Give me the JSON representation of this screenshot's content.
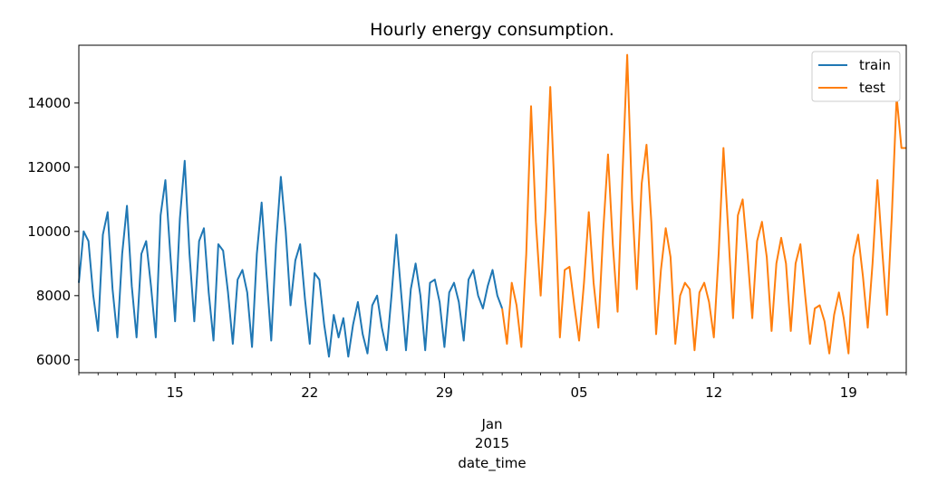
{
  "chart_data": {
    "type": "line",
    "title": "Hourly energy consumption.",
    "xlabel": "date_time",
    "ylabel": "",
    "ylim": [
      5600,
      15800
    ],
    "xlim": [
      "2014-12-10",
      "2015-01-22"
    ],
    "y_ticks": [
      6000,
      8000,
      10000,
      12000,
      14000
    ],
    "x_ticks": [
      {
        "date": "2014-12-15",
        "label": "15"
      },
      {
        "date": "2014-12-22",
        "label": "22"
      },
      {
        "date": "2014-12-29",
        "label": "29"
      },
      {
        "date": "2015-01-05",
        "label": "05"
      },
      {
        "date": "2015-01-12",
        "label": "12"
      },
      {
        "date": "2015-01-19",
        "label": "19"
      }
    ],
    "month_label": "Jan",
    "year_label": "2015",
    "legend": {
      "position": "top-right"
    },
    "grid": false,
    "series": [
      {
        "name": "train",
        "color": "#1f77b4",
        "x": [
          "2014-12-10",
          "2014-12-10T06",
          "2014-12-10T12",
          "2014-12-10T18",
          "2014-12-11",
          "2014-12-11T06",
          "2014-12-11T12",
          "2014-12-11T18",
          "2014-12-12",
          "2014-12-12T06",
          "2014-12-12T12",
          "2014-12-12T18",
          "2014-12-13",
          "2014-12-13T06",
          "2014-12-13T12",
          "2014-12-13T18",
          "2014-12-14",
          "2014-12-14T06",
          "2014-12-14T12",
          "2014-12-14T18",
          "2014-12-15",
          "2014-12-15T06",
          "2014-12-15T12",
          "2014-12-15T18",
          "2014-12-16",
          "2014-12-16T06",
          "2014-12-16T12",
          "2014-12-16T18",
          "2014-12-17",
          "2014-12-17T06",
          "2014-12-17T12",
          "2014-12-17T18",
          "2014-12-18",
          "2014-12-18T06",
          "2014-12-18T12",
          "2014-12-18T18",
          "2014-12-19",
          "2014-12-19T06",
          "2014-12-19T12",
          "2014-12-19T18",
          "2014-12-20",
          "2014-12-20T06",
          "2014-12-20T12",
          "2014-12-20T18",
          "2014-12-21",
          "2014-12-21T06",
          "2014-12-21T12",
          "2014-12-21T18",
          "2014-12-22",
          "2014-12-22T06",
          "2014-12-22T12",
          "2014-12-22T18",
          "2014-12-23",
          "2014-12-23T06",
          "2014-12-23T12",
          "2014-12-23T18",
          "2014-12-24",
          "2014-12-24T06",
          "2014-12-24T12",
          "2014-12-24T18",
          "2014-12-25",
          "2014-12-25T06",
          "2014-12-25T12",
          "2014-12-25T18",
          "2014-12-26",
          "2014-12-26T06",
          "2014-12-26T12",
          "2014-12-26T18",
          "2014-12-27",
          "2014-12-27T06",
          "2014-12-27T12",
          "2014-12-27T18",
          "2014-12-28",
          "2014-12-28T06",
          "2014-12-28T12",
          "2014-12-28T18",
          "2014-12-29",
          "2014-12-29T06",
          "2014-12-29T12",
          "2014-12-29T18",
          "2014-12-30",
          "2014-12-30T06",
          "2014-12-30T12",
          "2014-12-30T18",
          "2014-12-31",
          "2014-12-31T06",
          "2014-12-31T12",
          "2014-12-31T18",
          "2015-01-01"
        ],
        "values": [
          8400,
          10000,
          9700,
          8000,
          6900,
          9900,
          10600,
          8200,
          6700,
          9300,
          10800,
          8300,
          6700,
          9300,
          9700,
          8300,
          6700,
          10500,
          11600,
          9300,
          7200,
          10400,
          12200,
          9300,
          7200,
          9700,
          10100,
          8100,
          6600,
          9600,
          9400,
          8100,
          6500,
          8500,
          8800,
          8100,
          6400,
          9300,
          10900,
          8700,
          6600,
          9600,
          11700,
          10000,
          7700,
          9100,
          9600,
          7900,
          6500,
          8700,
          8500,
          7100,
          6100,
          7400,
          6700,
          7300,
          6100,
          7100,
          7800,
          6800,
          6200,
          7700,
          8000,
          7000,
          6300,
          8000,
          9900,
          8100,
          6300,
          8200,
          9000,
          8000,
          6300,
          8400,
          8500,
          7800,
          6400,
          8100,
          8400,
          7800,
          6600,
          8500,
          8800,
          8000,
          7600,
          8300,
          8800,
          8000,
          7600
        ]
      },
      {
        "name": "test",
        "color": "#ff7f0e",
        "x": [
          "2015-01-01",
          "2015-01-01T06",
          "2015-01-01T12",
          "2015-01-01T18",
          "2015-01-02",
          "2015-01-02T06",
          "2015-01-02T12",
          "2015-01-02T18",
          "2015-01-03",
          "2015-01-03T06",
          "2015-01-03T12",
          "2015-01-03T18",
          "2015-01-04",
          "2015-01-04T06",
          "2015-01-04T12",
          "2015-01-04T18",
          "2015-01-05",
          "2015-01-05T06",
          "2015-01-05T12",
          "2015-01-05T18",
          "2015-01-06",
          "2015-01-06T06",
          "2015-01-06T12",
          "2015-01-06T18",
          "2015-01-07",
          "2015-01-07T06",
          "2015-01-07T12",
          "2015-01-07T18",
          "2015-01-08",
          "2015-01-08T06",
          "2015-01-08T12",
          "2015-01-08T18",
          "2015-01-09",
          "2015-01-09T06",
          "2015-01-09T12",
          "2015-01-09T18",
          "2015-01-10",
          "2015-01-10T06",
          "2015-01-10T12",
          "2015-01-10T18",
          "2015-01-11",
          "2015-01-11T06",
          "2015-01-11T12",
          "2015-01-11T18",
          "2015-01-12",
          "2015-01-12T06",
          "2015-01-12T12",
          "2015-01-12T18",
          "2015-01-13",
          "2015-01-13T06",
          "2015-01-13T12",
          "2015-01-13T18",
          "2015-01-14",
          "2015-01-14T06",
          "2015-01-14T12",
          "2015-01-14T18",
          "2015-01-15",
          "2015-01-15T06",
          "2015-01-15T12",
          "2015-01-15T18",
          "2015-01-16",
          "2015-01-16T06",
          "2015-01-16T12",
          "2015-01-16T18",
          "2015-01-17",
          "2015-01-17T06",
          "2015-01-17T12",
          "2015-01-17T18",
          "2015-01-18",
          "2015-01-18T06",
          "2015-01-18T12",
          "2015-01-18T18",
          "2015-01-19",
          "2015-01-19T06",
          "2015-01-19T12",
          "2015-01-19T18",
          "2015-01-20",
          "2015-01-20T06",
          "2015-01-20T12",
          "2015-01-20T18",
          "2015-01-21",
          "2015-01-21T06",
          "2015-01-21T12",
          "2015-01-21T18",
          "2015-01-22"
        ],
        "values": [
          7600,
          6500,
          8400,
          7700,
          6400,
          9300,
          13900,
          10300,
          8000,
          10700,
          14500,
          10800,
          6700,
          8800,
          8900,
          7700,
          6600,
          8400,
          10600,
          8400,
          7000,
          10000,
          12400,
          9600,
          7500,
          11700,
          15500,
          11000,
          8200,
          11500,
          12700,
          10300,
          6800,
          8800,
          10100,
          9200,
          6500,
          8000,
          8400,
          8200,
          6300,
          8100,
          8400,
          7800,
          6700,
          9300,
          12600,
          10000,
          7300,
          10500,
          11000,
          9300,
          7300,
          9700,
          10300,
          9200,
          6900,
          9000,
          9800,
          9000,
          6900,
          9000,
          9600,
          8000,
          6500,
          7600,
          7700,
          7200,
          6200,
          7400,
          8100,
          7300,
          6200,
          9200,
          9900,
          8600,
          7000,
          9000,
          11600,
          9400,
          7400,
          10500,
          14200,
          12600,
          12600
        ]
      }
    ]
  }
}
